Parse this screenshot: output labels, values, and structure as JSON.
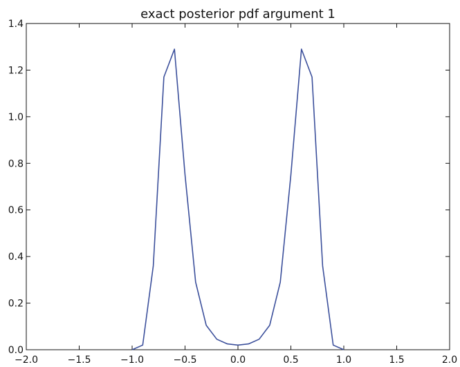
{
  "chart_data": {
    "type": "line",
    "title": "exact posterior pdf argument 1",
    "xlabel": "",
    "ylabel": "",
    "xlim": [
      -2.0,
      2.0
    ],
    "ylim": [
      0.0,
      1.4
    ],
    "grid": false,
    "x_ticks": [
      "−2.0",
      "−1.5",
      "−1.0",
      "−0.5",
      "0.0",
      "0.5",
      "1.0",
      "1.5",
      "2.0"
    ],
    "y_ticks": [
      "0.0",
      "0.2",
      "0.4",
      "0.6",
      "0.8",
      "1.0",
      "1.2",
      "1.4"
    ],
    "series": [
      {
        "color": "#3b4f9b",
        "x": [
          -1.0,
          -0.9,
          -0.8,
          -0.7,
          -0.6,
          -0.5,
          -0.4,
          -0.3,
          -0.2,
          -0.1,
          0.0,
          0.1,
          0.2,
          0.3,
          0.4,
          0.5,
          0.6,
          0.7,
          0.8,
          0.9,
          1.0
        ],
        "y": [
          0.0,
          0.02,
          0.36,
          1.17,
          1.29,
          0.75,
          0.29,
          0.105,
          0.045,
          0.025,
          0.02,
          0.025,
          0.045,
          0.105,
          0.29,
          0.75,
          1.29,
          1.17,
          0.36,
          0.02,
          0.0
        ]
      }
    ]
  }
}
